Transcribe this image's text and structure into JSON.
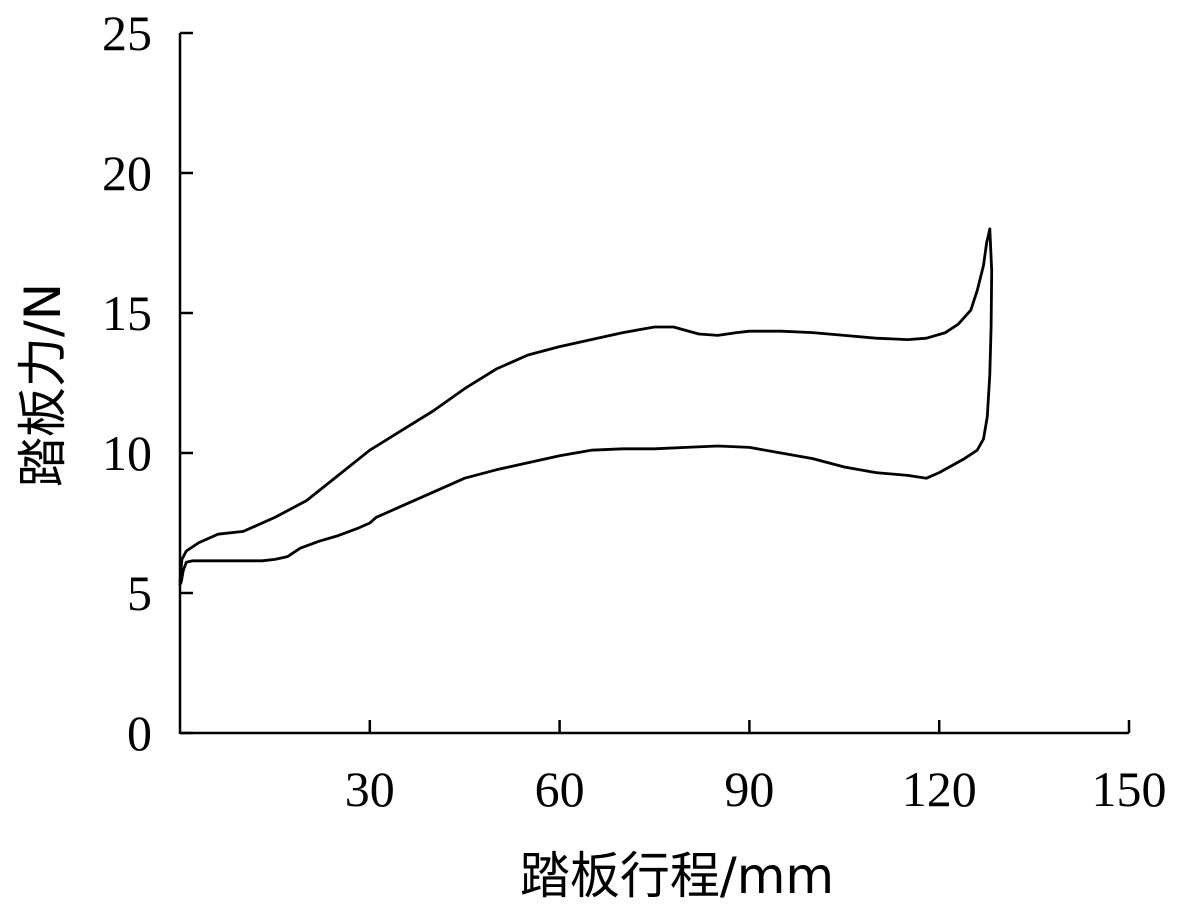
{
  "chart_data": {
    "type": "line",
    "title": "",
    "xlabel": "踏板行程/mm",
    "ylabel": "踏板力/N",
    "xlim": [
      0,
      150
    ],
    "ylim": [
      0,
      25
    ],
    "xticks": [
      30,
      60,
      90,
      120,
      150
    ],
    "yticks": [
      0,
      5,
      10,
      15,
      20,
      25
    ],
    "grid": false,
    "legend": "none",
    "line_color": "#000000",
    "series": [
      {
        "x": [
          0,
          0.3,
          1,
          3,
          6,
          10,
          15,
          20,
          25,
          30,
          35,
          40,
          45,
          50,
          55,
          60,
          65,
          70,
          75,
          78,
          82,
          85,
          88,
          90,
          95,
          100,
          105,
          110,
          115,
          118,
          121,
          123,
          125,
          126,
          127,
          127.5,
          128
        ],
        "y": [
          5.4,
          6.2,
          6.5,
          6.8,
          7.1,
          7.2,
          7.7,
          8.3,
          9.2,
          10.1,
          10.8,
          11.5,
          12.3,
          13.0,
          13.5,
          13.8,
          14.05,
          14.3,
          14.5,
          14.5,
          14.25,
          14.2,
          14.3,
          14.35,
          14.35,
          14.3,
          14.2,
          14.1,
          14.05,
          14.1,
          14.3,
          14.6,
          15.1,
          15.8,
          16.7,
          17.5,
          18.0
        ]
      },
      {
        "x": [
          128,
          128.3,
          128.2,
          128,
          127.6,
          127,
          126,
          124,
          122,
          120,
          118,
          115,
          110,
          105,
          100,
          95,
          90,
          85,
          80,
          75,
          70,
          65,
          60,
          55,
          50,
          45,
          40,
          35,
          31,
          30,
          28,
          25,
          22,
          19,
          17,
          15,
          13,
          10,
          7,
          4,
          2,
          1,
          0.5,
          0.2,
          0
        ],
        "y": [
          18.0,
          16.5,
          14.5,
          12.8,
          11.3,
          10.5,
          10.1,
          9.8,
          9.55,
          9.3,
          9.1,
          9.2,
          9.3,
          9.5,
          9.8,
          10.0,
          10.2,
          10.25,
          10.2,
          10.15,
          10.15,
          10.1,
          9.9,
          9.65,
          9.4,
          9.1,
          8.6,
          8.1,
          7.7,
          7.5,
          7.3,
          7.05,
          6.85,
          6.6,
          6.3,
          6.2,
          6.15,
          6.15,
          6.15,
          6.15,
          6.15,
          6.1,
          5.8,
          5.4,
          5.3
        ]
      }
    ]
  }
}
